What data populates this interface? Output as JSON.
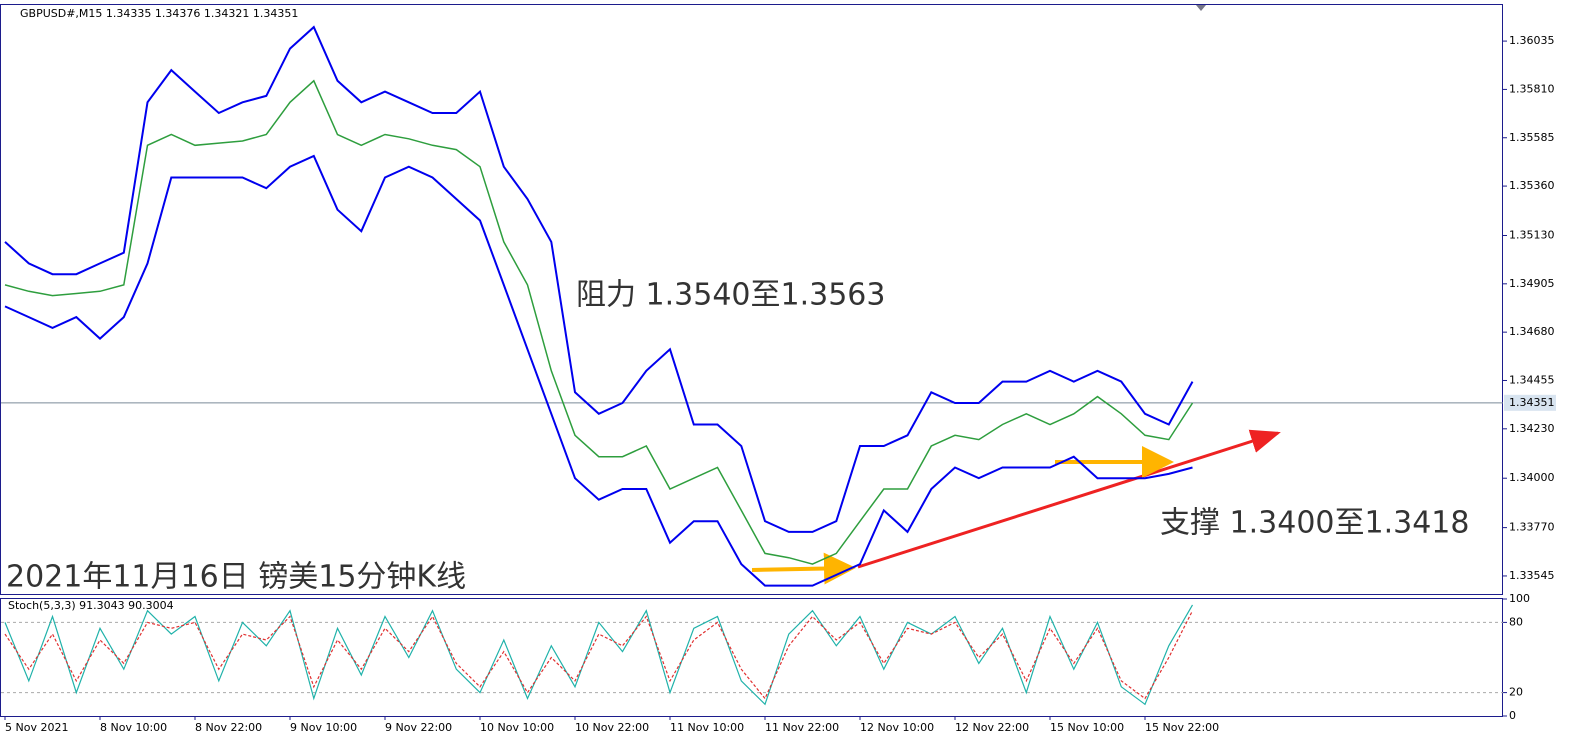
{
  "chart_data": [
    {
      "type": "line",
      "title": "GBPUSD#,M15  1.34335 1.34376 1.34321 1.34351",
      "annotations": [
        "阻力 1.3540至1.3563",
        "支撑 1.3400至1.3418",
        "2021年11月16日 镑美15分钟K线"
      ],
      "last_price": 1.34351,
      "ylim": [
        1.33461,
        1.36203
      ],
      "yticks": [
        1.33545,
        {
          "value": 1.3377,
          "label": "1.33770"
        },
        {
          "value": 1.34,
          "label": "1.34000"
        },
        {
          "value": 1.3423,
          "label": "1.34230"
        },
        1.34455,
        {
          "value": 1.3468,
          "label": "1.34680"
        },
        1.34905,
        {
          "value": 1.3513,
          "label": "1.35130"
        },
        {
          "value": 1.3536,
          "label": "1.35360"
        },
        1.35585,
        {
          "value": 1.3581,
          "label": "1.35810"
        },
        1.36035
      ],
      "series": [
        {
          "color": "#2e9e3e",
          "width": 1.5,
          "values": [
            1.349,
            1.3487,
            1.3485,
            1.3486,
            1.3487,
            1.349,
            1.3555,
            1.356,
            1.3555,
            1.3556,
            1.3557,
            1.356,
            1.3575,
            1.3585,
            1.356,
            1.3555,
            1.356,
            1.3558,
            1.3555,
            1.3553,
            1.3545,
            1.351,
            1.349,
            1.345,
            1.342,
            1.341,
            1.341,
            1.3415,
            1.3395,
            1.34,
            1.3405,
            1.3385,
            1.3365,
            1.3363,
            1.336,
            1.3365,
            1.338,
            1.3395,
            1.3395,
            1.3415,
            1.342,
            1.3418,
            1.3425,
            1.343,
            1.3425,
            1.343,
            1.3438,
            1.343,
            1.342,
            1.3418,
            1.3435
          ]
        },
        {
          "color": "#0000ee",
          "width": 2,
          "values": [
            1.351,
            1.35,
            1.3495,
            1.3495,
            1.35,
            1.3505,
            1.3575,
            1.359,
            1.358,
            1.357,
            1.3575,
            1.3578,
            1.36,
            1.361,
            1.3585,
            1.3575,
            1.358,
            1.3575,
            1.357,
            1.357,
            1.358,
            1.3545,
            1.353,
            1.351,
            1.344,
            1.343,
            1.3435,
            1.345,
            1.346,
            1.3425,
            1.3425,
            1.3415,
            1.338,
            1.3375,
            1.3375,
            1.338,
            1.3415,
            1.3415,
            1.342,
            1.344,
            1.3435,
            1.3435,
            1.3445,
            1.3445,
            1.345,
            1.3445,
            1.345,
            1.3445,
            1.343,
            1.3425,
            1.3445
          ]
        },
        {
          "color": "#0000ee",
          "width": 2,
          "values": [
            1.348,
            1.3475,
            1.347,
            1.3475,
            1.3465,
            1.3475,
            1.35,
            1.354,
            1.354,
            1.354,
            1.354,
            1.3535,
            1.3545,
            1.355,
            1.3525,
            1.3515,
            1.354,
            1.3545,
            1.354,
            1.353,
            1.352,
            1.349,
            1.346,
            1.343,
            1.34,
            1.339,
            1.3395,
            1.3395,
            1.337,
            1.338,
            1.338,
            1.336,
            1.335,
            1.335,
            1.335,
            1.3355,
            1.336,
            1.3385,
            1.3375,
            1.3395,
            1.3405,
            1.34,
            1.3405,
            1.3405,
            1.3405,
            1.341,
            1.34,
            1.34,
            1.34,
            1.3402,
            1.3405
          ]
        }
      ]
    },
    {
      "type": "line",
      "title": "Stoch(5,3,3) 91.3043 90.3004",
      "categories": [
        "5 Nov 2021",
        null,
        null,
        null,
        "8 Nov 10:00",
        null,
        null,
        null,
        "8 Nov 22:00",
        null,
        null,
        null,
        "9 Nov 10:00",
        null,
        null,
        null,
        "9 Nov 22:00",
        null,
        null,
        null,
        "10 Nov 10:00",
        null,
        null,
        null,
        "10 Nov 22:00",
        null,
        null,
        null,
        "11 Nov 10:00",
        null,
        null,
        null,
        "11 Nov 22:00",
        null,
        null,
        null,
        "12 Nov 10:00",
        null,
        null,
        null,
        "12 Nov 22:00",
        null,
        null,
        null,
        "15 Nov 10:00",
        null,
        null,
        null,
        "15 Nov 22:00",
        null,
        null
      ],
      "ylim": [
        0,
        100
      ],
      "yticks": [
        0,
        20,
        80,
        100
      ],
      "levels": [
        20,
        80
      ],
      "series": [
        {
          "color": "#20b2aa",
          "dash": false,
          "values": [
            80,
            30,
            85,
            20,
            75,
            40,
            90,
            70,
            85,
            30,
            80,
            60,
            90,
            15,
            75,
            35,
            85,
            50,
            90,
            40,
            20,
            65,
            15,
            60,
            25,
            80,
            55,
            90,
            20,
            75,
            85,
            30,
            10,
            70,
            90,
            60,
            85,
            40,
            80,
            70,
            85,
            45,
            75,
            20,
            85,
            40,
            80,
            25,
            10,
            60,
            95
          ]
        },
        {
          "color": "#e03030",
          "dash": true,
          "values": [
            70,
            40,
            70,
            30,
            65,
            45,
            80,
            75,
            80,
            40,
            70,
            65,
            85,
            25,
            65,
            40,
            75,
            55,
            85,
            45,
            25,
            55,
            20,
            50,
            30,
            70,
            60,
            85,
            30,
            65,
            80,
            40,
            15,
            60,
            85,
            65,
            80,
            45,
            75,
            70,
            80,
            50,
            70,
            30,
            75,
            45,
            75,
            30,
            15,
            50,
            90
          ]
        }
      ]
    }
  ]
}
